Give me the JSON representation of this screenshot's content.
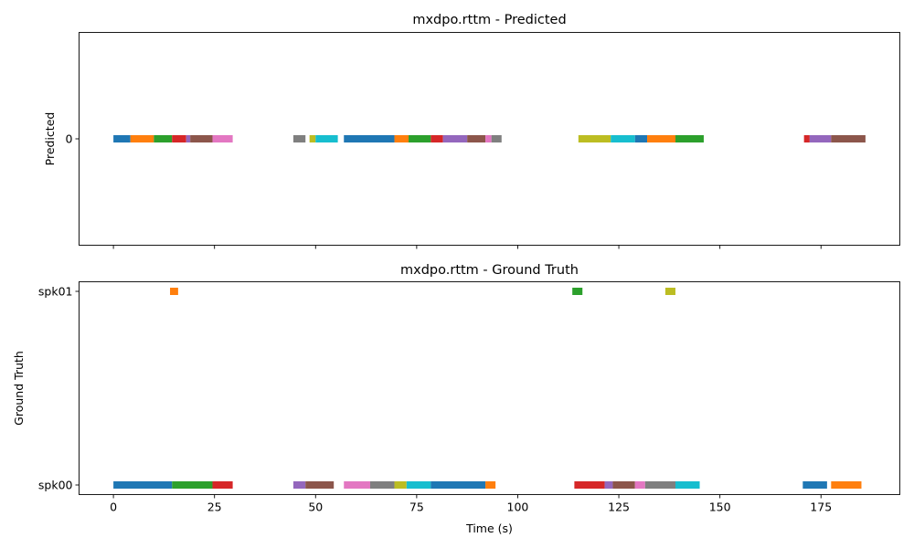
{
  "chart_data": [
    {
      "type": "timeline",
      "title": "mxdpo.rttm - Predicted",
      "ylabel": "Predicted",
      "xlabel": "",
      "xlim": [
        -8.5,
        194.5
      ],
      "show_x_ticklabels": false,
      "rows": [
        "0"
      ],
      "segments": [
        {
          "row": "0",
          "start": 0,
          "end": 4.2,
          "color": "#1f77b4"
        },
        {
          "row": "0",
          "start": 4.2,
          "end": 10,
          "color": "#ff7f0e"
        },
        {
          "row": "0",
          "start": 10,
          "end": 14.5,
          "color": "#2ca02c"
        },
        {
          "row": "0",
          "start": 14.5,
          "end": 18,
          "color": "#d62728"
        },
        {
          "row": "0",
          "start": 18,
          "end": 19,
          "color": "#9467bd"
        },
        {
          "row": "0",
          "start": 19,
          "end": 24.5,
          "color": "#8c564b"
        },
        {
          "row": "0",
          "start": 24.5,
          "end": 29.5,
          "color": "#e377c2"
        },
        {
          "row": "0",
          "start": 44.5,
          "end": 47.5,
          "color": "#7f7f7f"
        },
        {
          "row": "0",
          "start": 48.5,
          "end": 50,
          "color": "#bcbd22"
        },
        {
          "row": "0",
          "start": 50,
          "end": 55.5,
          "color": "#17becf"
        },
        {
          "row": "0",
          "start": 57,
          "end": 69.5,
          "color": "#1f77b4"
        },
        {
          "row": "0",
          "start": 69.5,
          "end": 73,
          "color": "#ff7f0e"
        },
        {
          "row": "0",
          "start": 73,
          "end": 78.5,
          "color": "#2ca02c"
        },
        {
          "row": "0",
          "start": 78.5,
          "end": 81.5,
          "color": "#d62728"
        },
        {
          "row": "0",
          "start": 81.5,
          "end": 87.5,
          "color": "#9467bd"
        },
        {
          "row": "0",
          "start": 87.5,
          "end": 92,
          "color": "#8c564b"
        },
        {
          "row": "0",
          "start": 92,
          "end": 93.5,
          "color": "#e377c2"
        },
        {
          "row": "0",
          "start": 93.5,
          "end": 96,
          "color": "#7f7f7f"
        },
        {
          "row": "0",
          "start": 115,
          "end": 123,
          "color": "#bcbd22"
        },
        {
          "row": "0",
          "start": 123,
          "end": 129,
          "color": "#17becf"
        },
        {
          "row": "0",
          "start": 129,
          "end": 132,
          "color": "#1f77b4"
        },
        {
          "row": "0",
          "start": 132,
          "end": 139,
          "color": "#ff7f0e"
        },
        {
          "row": "0",
          "start": 139,
          "end": 146,
          "color": "#2ca02c"
        },
        {
          "row": "0",
          "start": 170.8,
          "end": 172.2,
          "color": "#d62728"
        },
        {
          "row": "0",
          "start": 172.2,
          "end": 177.5,
          "color": "#9467bd"
        },
        {
          "row": "0",
          "start": 177.5,
          "end": 186,
          "color": "#8c564b"
        }
      ]
    },
    {
      "type": "timeline",
      "title": "mxdpo.rttm - Ground Truth",
      "ylabel": "Ground Truth",
      "xlabel": "Time (s)",
      "xlim": [
        -8.5,
        194.5
      ],
      "xticks": [
        0,
        25,
        50,
        75,
        100,
        125,
        150,
        175
      ],
      "show_x_ticklabels": true,
      "rows": [
        "spk00",
        "spk01"
      ],
      "segments": [
        {
          "row": "spk01",
          "start": 14,
          "end": 16,
          "color": "#ff7f0e"
        },
        {
          "row": "spk01",
          "start": 113.5,
          "end": 116,
          "color": "#2ca02c"
        },
        {
          "row": "spk01",
          "start": 136.5,
          "end": 139,
          "color": "#bcbd22"
        },
        {
          "row": "spk00",
          "start": 0,
          "end": 14.5,
          "color": "#1f77b4"
        },
        {
          "row": "spk00",
          "start": 14.5,
          "end": 24.5,
          "color": "#2ca02c"
        },
        {
          "row": "spk00",
          "start": 24.5,
          "end": 29.5,
          "color": "#d62728"
        },
        {
          "row": "spk00",
          "start": 44.5,
          "end": 47.5,
          "color": "#9467bd"
        },
        {
          "row": "spk00",
          "start": 47.5,
          "end": 54.5,
          "color": "#8c564b"
        },
        {
          "row": "spk00",
          "start": 57,
          "end": 63.5,
          "color": "#e377c2"
        },
        {
          "row": "spk00",
          "start": 63.5,
          "end": 69.5,
          "color": "#7f7f7f"
        },
        {
          "row": "spk00",
          "start": 69.5,
          "end": 72.5,
          "color": "#bcbd22"
        },
        {
          "row": "spk00",
          "start": 72.5,
          "end": 78.5,
          "color": "#17becf"
        },
        {
          "row": "spk00",
          "start": 78.5,
          "end": 92,
          "color": "#1f77b4"
        },
        {
          "row": "spk00",
          "start": 92,
          "end": 94.5,
          "color": "#ff7f0e"
        },
        {
          "row": "spk00",
          "start": 114,
          "end": 121.5,
          "color": "#d62728"
        },
        {
          "row": "spk00",
          "start": 121.5,
          "end": 123.5,
          "color": "#9467bd"
        },
        {
          "row": "spk00",
          "start": 123.5,
          "end": 129,
          "color": "#8c564b"
        },
        {
          "row": "spk00",
          "start": 129,
          "end": 131.5,
          "color": "#e377c2"
        },
        {
          "row": "spk00",
          "start": 131.5,
          "end": 139,
          "color": "#7f7f7f"
        },
        {
          "row": "spk00",
          "start": 139,
          "end": 145,
          "color": "#17becf"
        },
        {
          "row": "spk00",
          "start": 170.5,
          "end": 176.5,
          "color": "#1f77b4"
        },
        {
          "row": "spk00",
          "start": 177.5,
          "end": 185,
          "color": "#ff7f0e"
        }
      ]
    }
  ]
}
